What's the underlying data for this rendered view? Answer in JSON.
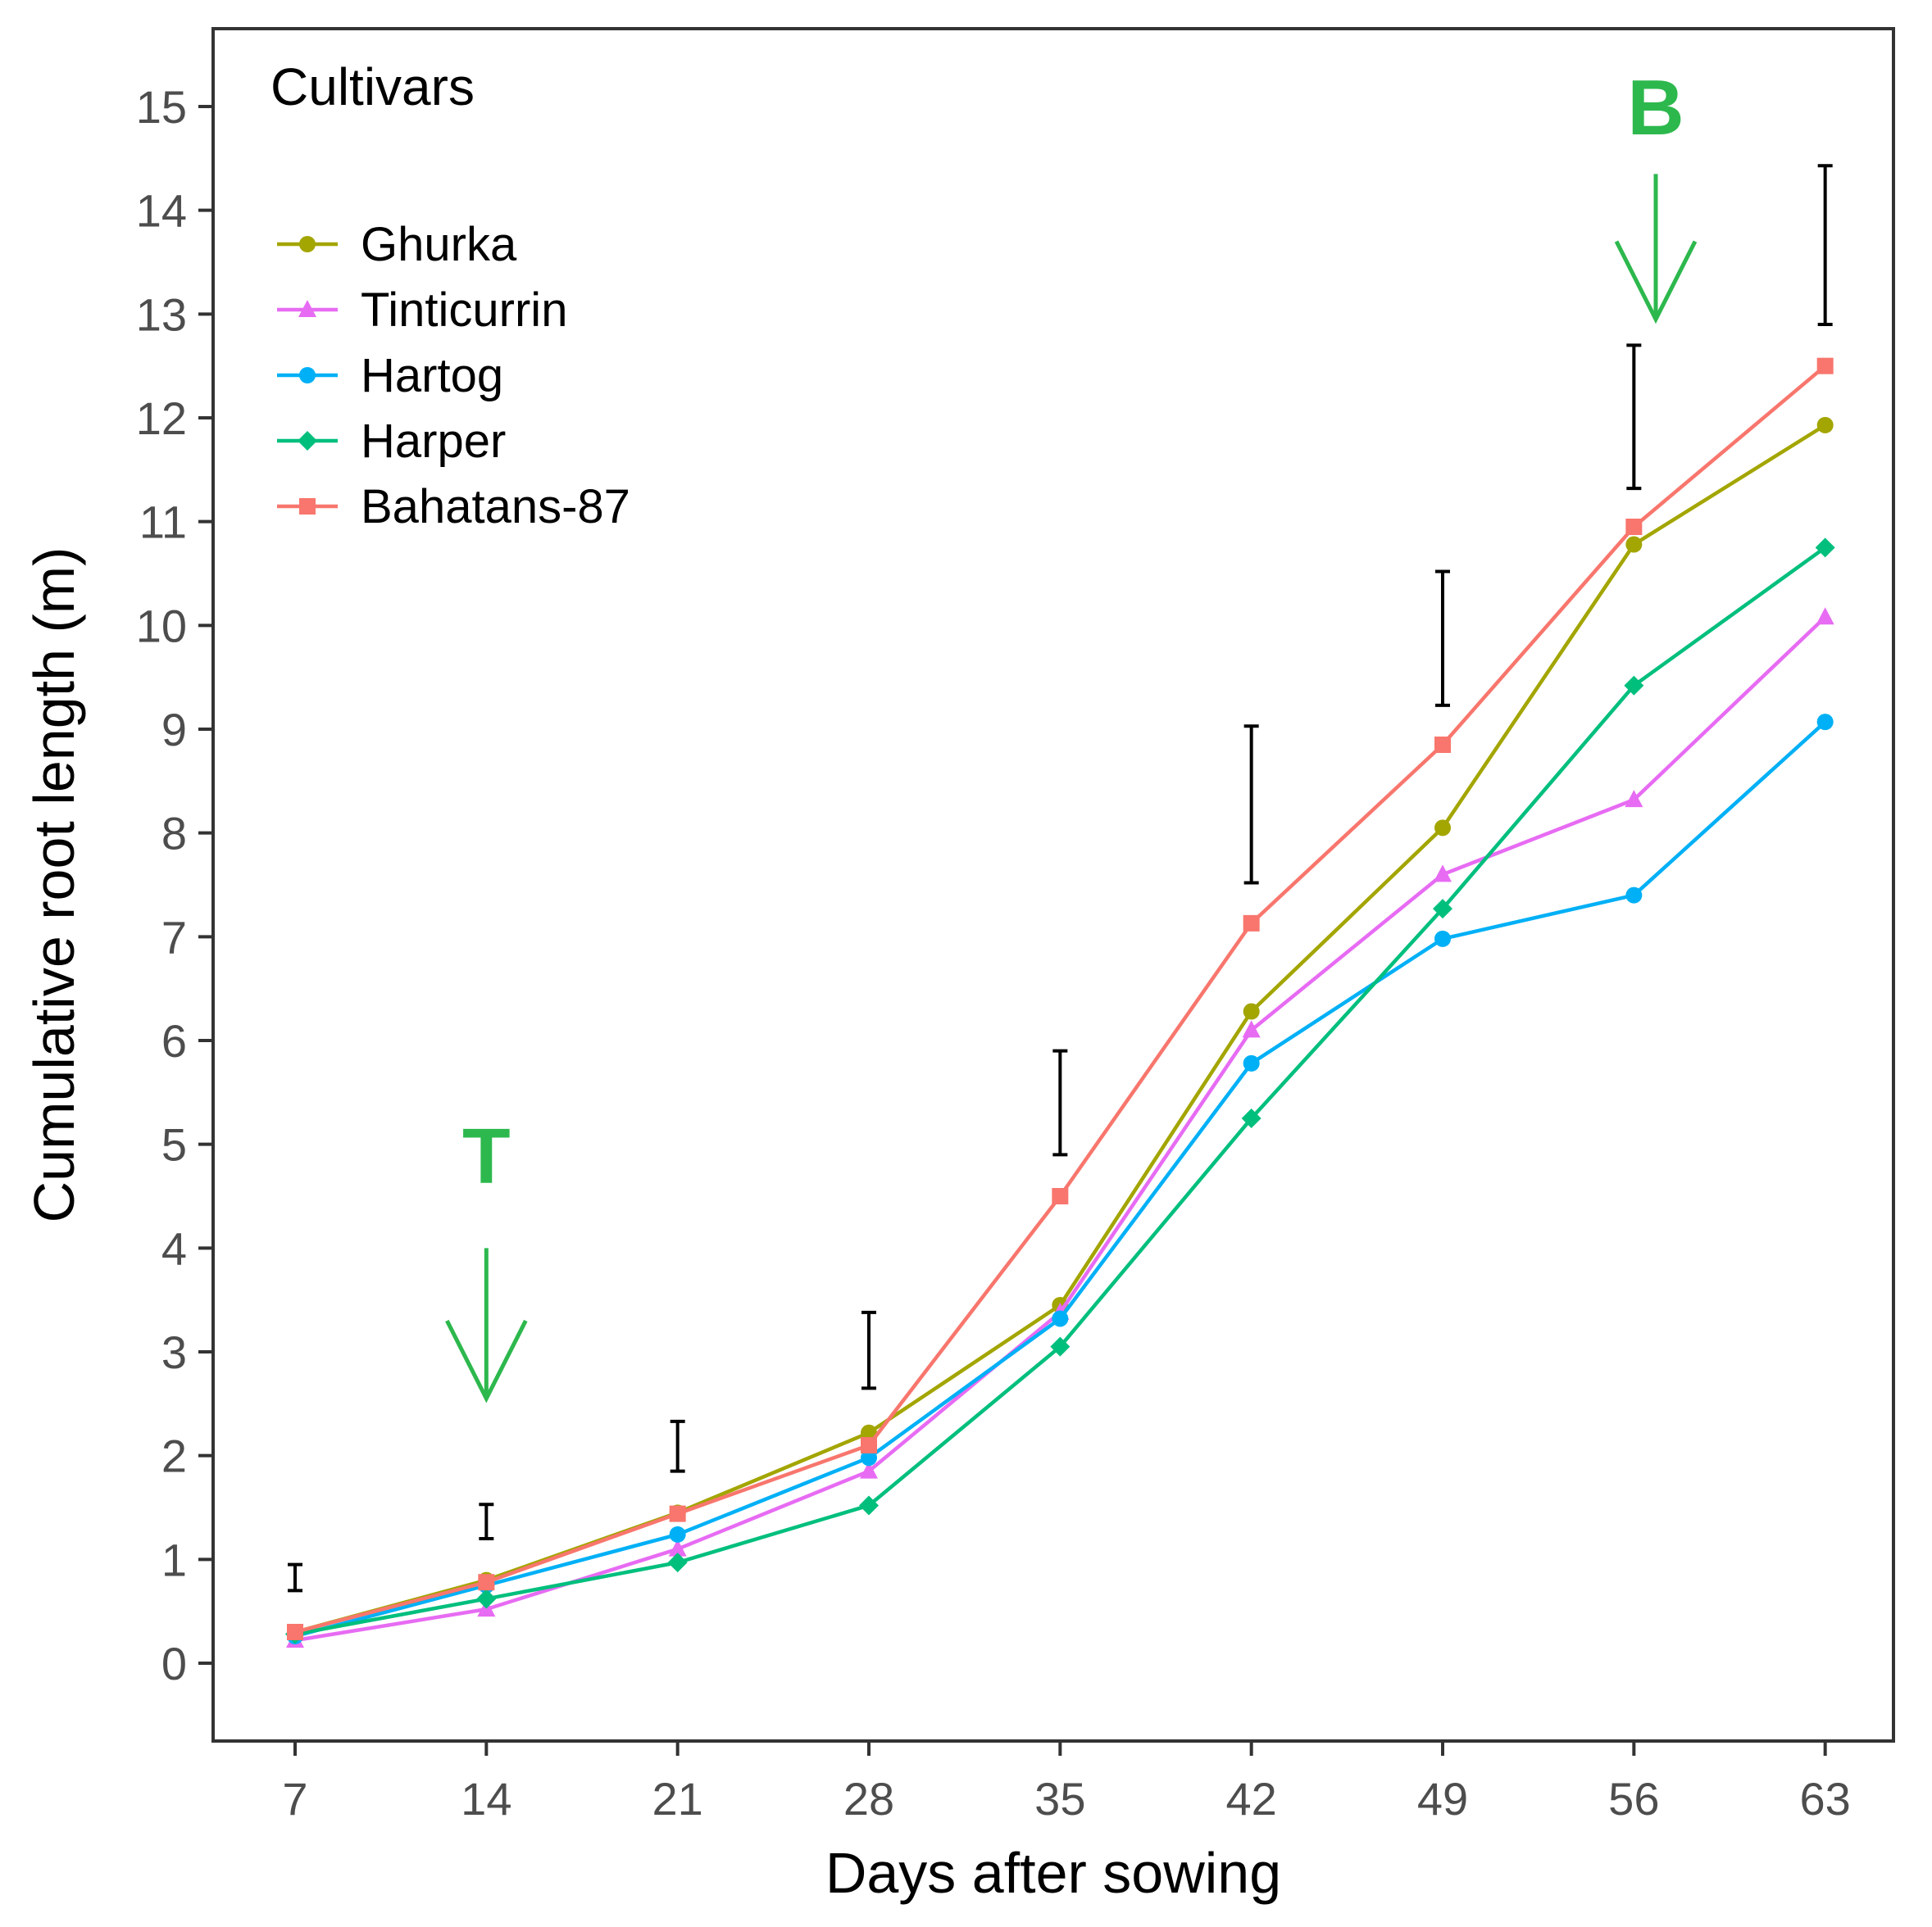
{
  "chart_data": {
    "type": "line",
    "title": "",
    "xlabel": "Days after sowing",
    "ylabel": "Cumulative root length (m)",
    "x": [
      7,
      14,
      21,
      28,
      35,
      42,
      49,
      56,
      63
    ],
    "x_tick_labels": [
      "7",
      "14",
      "21",
      "28",
      "35",
      "42",
      "49",
      "56",
      "63"
    ],
    "y_ticks": [
      0,
      1,
      2,
      3,
      4,
      5,
      6,
      7,
      8,
      9,
      10,
      11,
      12,
      13,
      14,
      15
    ],
    "y_tick_labels": [
      "0",
      "1",
      "2",
      "3",
      "4",
      "5",
      "6",
      "7",
      "8",
      "9",
      "10",
      "11",
      "12",
      "13",
      "14",
      "15"
    ],
    "xlim": [
      4,
      65.5
    ],
    "ylim": [
      -0.75,
      15.75
    ],
    "grid": false,
    "legend": {
      "title": "Cultivars",
      "placement": "top-left"
    },
    "series": [
      {
        "name": "Ghurka",
        "color": "#a3a500",
        "marker": "circle",
        "values": [
          0.3,
          0.8,
          1.45,
          2.22,
          3.45,
          6.28,
          8.05,
          10.78,
          11.93
        ]
      },
      {
        "name": "Tinticurrin",
        "color": "#e76bf3",
        "marker": "triangle",
        "values": [
          0.22,
          0.52,
          1.1,
          1.85,
          3.38,
          6.1,
          7.6,
          8.32,
          10.08
        ]
      },
      {
        "name": "Hartog",
        "color": "#00b0f6",
        "marker": "circle",
        "values": [
          0.26,
          0.75,
          1.24,
          1.98,
          3.32,
          5.78,
          6.98,
          7.4,
          9.07
        ]
      },
      {
        "name": "Harper",
        "color": "#00bf7d",
        "marker": "diamond",
        "values": [
          0.28,
          0.62,
          0.97,
          1.52,
          3.05,
          5.25,
          7.27,
          9.42,
          10.75
        ]
      },
      {
        "name": "Bahatans-87",
        "color": "#f8766d",
        "marker": "square",
        "values": [
          0.3,
          0.78,
          1.44,
          2.1,
          4.5,
          7.13,
          8.85,
          10.95,
          12.5
        ]
      }
    ],
    "error_bars": {
      "color": "#000000",
      "x": [
        7,
        14,
        21,
        28,
        35,
        42,
        49,
        56,
        63
      ],
      "low": [
        0.7,
        1.2,
        1.85,
        2.65,
        4.9,
        7.52,
        9.23,
        11.32,
        12.9
      ],
      "high": [
        0.95,
        1.53,
        2.33,
        3.38,
        5.9,
        9.03,
        10.52,
        12.7,
        14.43
      ]
    },
    "annotations": [
      {
        "label": "T",
        "color": "#2db84d",
        "x": 14,
        "arrow_top": 4.0,
        "arrow_bottom": 2.55,
        "text_y": 4.9
      },
      {
        "label": "B",
        "color": "#2db84d",
        "x": 56.8,
        "arrow_top": 14.35,
        "arrow_bottom": 12.95,
        "text_y": 15.0
      }
    ]
  }
}
